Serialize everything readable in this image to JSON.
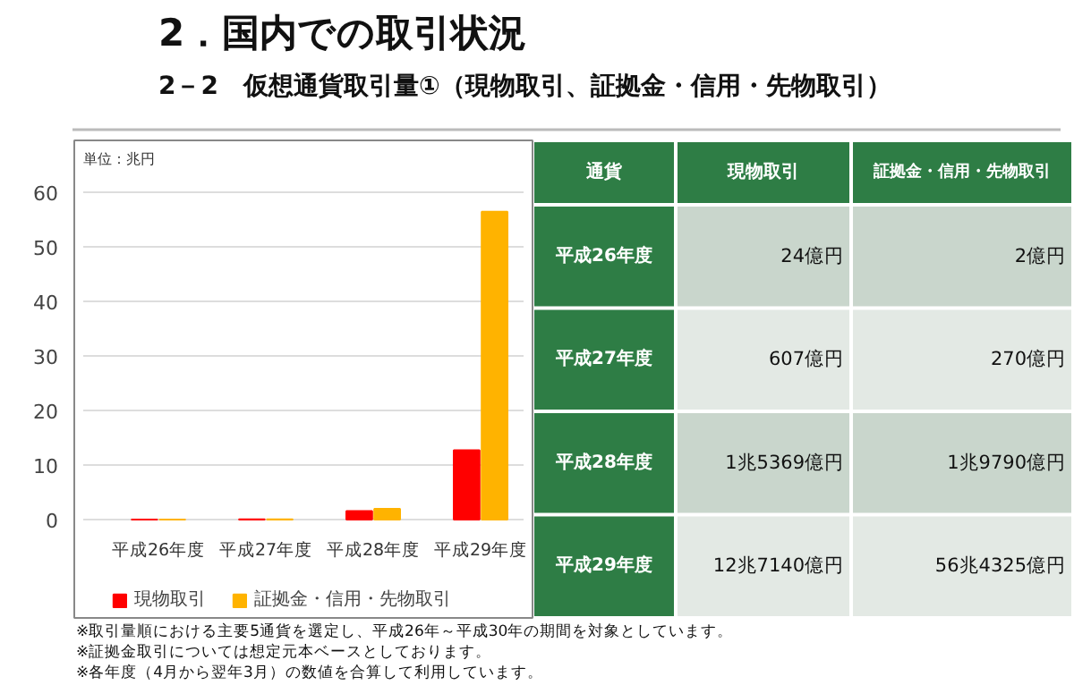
{
  "chart_data": {
    "type": "bar",
    "title": "2．国内での取引状況",
    "subtitle": "2－2　仮想通貨取引量①（現物取引、証拠金・信用・先物取引）",
    "ylabel": "単位：兆円",
    "xlabel": "通貨",
    "categories": [
      "平成26年度",
      "平成27年度",
      "平成28年度",
      "平成29年度"
    ],
    "series": [
      {
        "name": "現物取引",
        "color": "#ff0000",
        "values": [
          0.0024,
          0.0607,
          1.5369,
          12.714
        ]
      },
      {
        "name": "証拠金・信用・先物取引",
        "color": "#ffb300",
        "values": [
          0.0002,
          0.027,
          1.979,
          56.4325
        ]
      }
    ],
    "ylim": [
      0,
      60
    ],
    "yticks": [
      0,
      10,
      20,
      30,
      40,
      50,
      60
    ],
    "grid": "y",
    "legend": "bottom",
    "annotations": [
      "24億円",
      "2億円",
      "607億円",
      "270億円",
      "1兆5369億円",
      "1兆9790億円",
      "12兆7140億円",
      "56兆4325億円",
      "※取引量順における主要5通貨を選定し、平成26年～平成30年の期間を対象としています。",
      "※証拠金取引については想定元本ベースとしております。",
      "※各年度（4月から翌年3月）の数値を合算して利用しています。"
    ]
  }
}
